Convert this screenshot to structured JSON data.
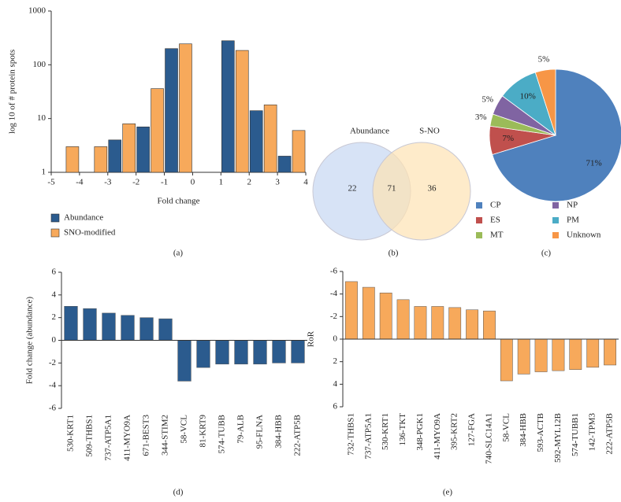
{
  "chart_data": [
    {
      "type": "bar",
      "panel_label": "(a)",
      "xlabel": "Fold change",
      "ylabel": "log 10 of # protein spots",
      "log_y": true,
      "xlim": [
        -5,
        4
      ],
      "xticks": [
        -5,
        -4,
        -3,
        -2,
        -1,
        0,
        1,
        2,
        3,
        4
      ],
      "ylim": [
        1,
        1000
      ],
      "yticks": [
        1,
        10,
        100,
        1000
      ],
      "series": [
        {
          "name": "Abundance",
          "color": "#2b5b8e",
          "x": [
            -2.75,
            -1.75,
            -0.75,
            1.25,
            2.25,
            3.25
          ],
          "values": [
            4,
            7,
            200,
            280,
            14,
            2
          ]
        },
        {
          "name": "SNO-modified",
          "color": "#f7a95b",
          "x": [
            -4.25,
            -3.25,
            -2.25,
            -1.25,
            -0.25,
            1.75,
            2.75,
            3.75
          ],
          "values": [
            3,
            3,
            8,
            36,
            245,
            185,
            18,
            6
          ]
        }
      ]
    },
    {
      "type": "venn",
      "panel_label": "(b)",
      "sets": [
        "Abundance",
        "S-NO"
      ],
      "colors": [
        "#c6d7f2",
        "#fde2b3"
      ],
      "values": [
        22,
        71,
        36
      ]
    },
    {
      "type": "pie",
      "panel_label": "(c)",
      "categories": [
        "CP",
        "ES",
        "MT",
        "NP",
        "PM",
        "Unknown"
      ],
      "values": [
        71,
        7,
        3,
        5,
        10,
        5
      ],
      "value_labels": [
        "71%",
        "7%",
        "3%",
        "5%",
        "10%",
        "5%"
      ],
      "colors": [
        "#4f81bd",
        "#c0504d",
        "#9bbb59",
        "#8064a2",
        "#4bacc6",
        "#f79646"
      ]
    },
    {
      "type": "bar",
      "panel_label": "(d)",
      "ylabel": "Fold change (abundance)",
      "color": "#2b5b8e",
      "categories": [
        "530-KRT1",
        "509-THBS1",
        "737-ATP5A1",
        "411-MYO9A",
        "671-BEST3",
        "344-STIM2",
        "58-VCL",
        "81-KRT9",
        "574-TUBB",
        "79-ALB",
        "95-FLNA",
        "384-HBB",
        "222-ATP5B"
      ],
      "values": [
        3.0,
        2.8,
        2.4,
        2.2,
        2.0,
        1.9,
        -3.6,
        -2.4,
        -2.1,
        -2.1,
        -2.1,
        -2.0,
        -2.0
      ],
      "ylim": [
        -6,
        6
      ],
      "yticks": [
        -6,
        -4,
        -2,
        0,
        2,
        4,
        6
      ]
    },
    {
      "type": "bar",
      "panel_label": "(e)",
      "ylabel": "RoR",
      "color": "#f7a95b",
      "y_inverted": true,
      "categories": [
        "732-THBS1",
        "737-ATP5A1",
        "530-KRT1",
        "136-TKT",
        "348-PGK1",
        "411-MYO9A",
        "395-KRT2",
        "127-FGA",
        "740-SLC14A1",
        "58-VCL",
        "384-HBB",
        "593-ACTB",
        "592-MYL12B",
        "574-TUBB1",
        "142-TPM3",
        "222-ATP5B"
      ],
      "values": [
        -5.1,
        -4.6,
        -4.1,
        -3.5,
        -2.9,
        -2.9,
        -2.8,
        -2.6,
        -2.5,
        3.7,
        3.1,
        2.9,
        2.8,
        2.7,
        2.5,
        2.3
      ],
      "ylim": [
        -6,
        6
      ],
      "yticks": [
        -6,
        -4,
        -2,
        0,
        2,
        4,
        6
      ]
    }
  ]
}
